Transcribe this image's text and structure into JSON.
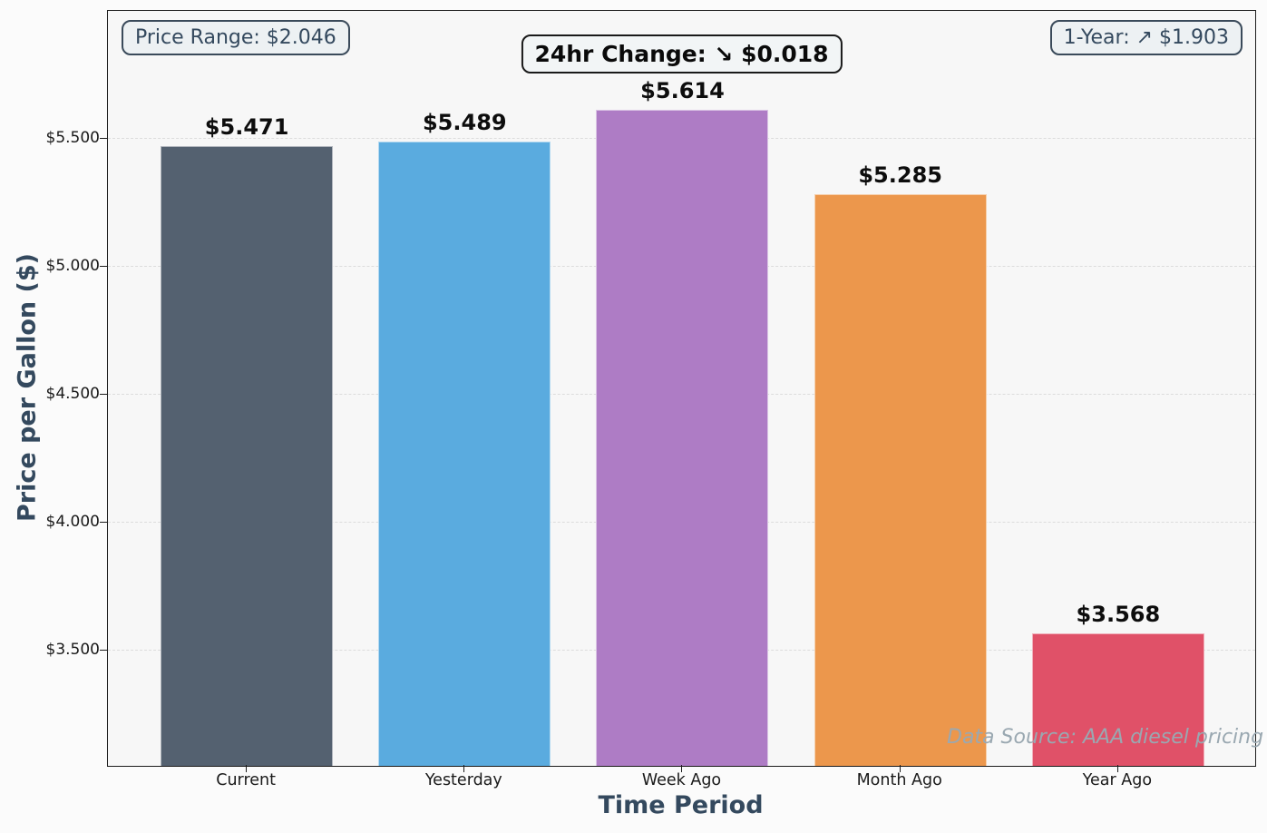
{
  "chart_data": {
    "type": "bar",
    "categories": [
      "Current",
      "Yesterday",
      "Week Ago",
      "Month Ago",
      "Year Ago"
    ],
    "values": [
      5.471,
      5.489,
      5.614,
      5.285,
      3.568
    ],
    "bar_labels": [
      "$5.471",
      "$5.489",
      "$5.614",
      "$5.285",
      "$3.568"
    ],
    "bar_colors": [
      "#546170",
      "#5aabdf",
      "#ae7cc5",
      "#ec974c",
      "#e05168"
    ],
    "xlabel": "Time Period",
    "ylabel": "Price per Gallon ($)",
    "ylim": [
      3.05,
      6.0
    ],
    "xlim": [
      -0.6375,
      4.6292
    ],
    "yticks": [
      3.5,
      4.0,
      4.5,
      5.0,
      5.5
    ],
    "ytick_labels": [
      "$3.500",
      "$4.000",
      "$4.500",
      "$5.000",
      "$5.500"
    ],
    "grid": "horizontal-dashed",
    "legend": "none",
    "bar_width_fraction": 0.1502
  },
  "annotations": {
    "price_range": "Price Range: $2.046",
    "change_24hr": "24hr Change: ↘ $0.018",
    "one_year": "1-Year: ↗ $1.903",
    "watermark": "Data Source: AAA diesel pricing"
  },
  "colors": {
    "axis_label": "#34495e",
    "plot_background": "#f7f7f7",
    "figure_background": "#fbfbfb",
    "gridline": "#dcdcdc",
    "value_label": "#0d0d0d",
    "watermark": "#9aa8b1"
  }
}
